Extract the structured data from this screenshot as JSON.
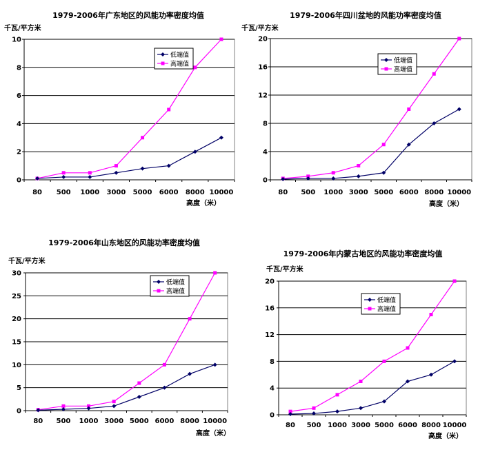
{
  "chart_data": [
    {
      "type": "line",
      "title": "1979-2006年广东地区的风能功率密度均值",
      "ylabel": "千瓦/平方米",
      "xlabel": "高度（米）",
      "categories": [
        "80",
        "500",
        "1000",
        "3000",
        "5000",
        "6000",
        "8000",
        "10000"
      ],
      "ylim": [
        0,
        10
      ],
      "yticks": [
        0,
        2,
        4,
        6,
        8,
        10
      ],
      "grid": true,
      "legend_position": "top-right",
      "series": [
        {
          "name": "低端值",
          "color": "#000066",
          "marker": "diamond",
          "values": [
            0.1,
            0.2,
            0.2,
            0.5,
            0.8,
            1.0,
            2.0,
            3.0
          ]
        },
        {
          "name": "高端值",
          "color": "#ff00ff",
          "marker": "square",
          "values": [
            0.1,
            0.5,
            0.5,
            1.0,
            3.0,
            5.0,
            8.0,
            10.0
          ]
        }
      ]
    },
    {
      "type": "line",
      "title": "1979-2006年四川盆地的风能功率密度均值",
      "ylabel": "千瓦/平方米",
      "xlabel": "高度（米）",
      "categories": [
        "80",
        "500",
        "1000",
        "3000",
        "5000",
        "6000",
        "8000",
        "10000"
      ],
      "ylim": [
        0,
        20
      ],
      "yticks": [
        0,
        4,
        8,
        12,
        16,
        20
      ],
      "grid": true,
      "legend_position": "top-right",
      "series": [
        {
          "name": "低端值",
          "color": "#000066",
          "marker": "diamond",
          "values": [
            0.1,
            0.2,
            0.2,
            0.5,
            1.0,
            5.0,
            8.0,
            10.0
          ]
        },
        {
          "name": "高端值",
          "color": "#ff00ff",
          "marker": "square",
          "values": [
            0.2,
            0.5,
            1.0,
            2.0,
            5.0,
            10.0,
            15.0,
            20.0
          ]
        }
      ]
    },
    {
      "type": "line",
      "title": "1979-2006年山东地区的风能功率密度均值",
      "ylabel": "千瓦/平方米",
      "xlabel": "高度（米）",
      "categories": [
        "80",
        "500",
        "1000",
        "3000",
        "5000",
        "6000",
        "8000",
        "10000"
      ],
      "ylim": [
        0,
        30
      ],
      "yticks": [
        0,
        5,
        10,
        15,
        20,
        25,
        30
      ],
      "grid": true,
      "legend_position": "top-right",
      "series": [
        {
          "name": "低端值",
          "color": "#000066",
          "marker": "diamond",
          "values": [
            0.1,
            0.3,
            0.5,
            1.0,
            3.0,
            5.0,
            8.0,
            10.0
          ]
        },
        {
          "name": "高端值",
          "color": "#ff00ff",
          "marker": "square",
          "values": [
            0.2,
            1.0,
            1.0,
            2.0,
            6.0,
            10.0,
            20.0,
            30.0
          ]
        }
      ]
    },
    {
      "type": "line",
      "title": "1979-2006年内蒙古地区的风能功率密度均值",
      "ylabel": "千瓦/平方米",
      "xlabel": "高度（米）",
      "categories": [
        "80",
        "500",
        "1000",
        "3000",
        "5000",
        "6000",
        "8000",
        "10000"
      ],
      "ylim": [
        0,
        20
      ],
      "yticks": [
        0,
        4,
        8,
        12,
        16,
        20
      ],
      "grid": true,
      "legend_position": "top-left",
      "series": [
        {
          "name": "低端值",
          "color": "#000066",
          "marker": "diamond",
          "values": [
            0.1,
            0.2,
            0.5,
            1.0,
            2.0,
            5.0,
            6.0,
            8.0
          ]
        },
        {
          "name": "高端值",
          "color": "#ff00ff",
          "marker": "square",
          "values": [
            0.5,
            1.0,
            3.0,
            5.0,
            8.0,
            10.0,
            15.0,
            20.0
          ]
        }
      ]
    }
  ]
}
